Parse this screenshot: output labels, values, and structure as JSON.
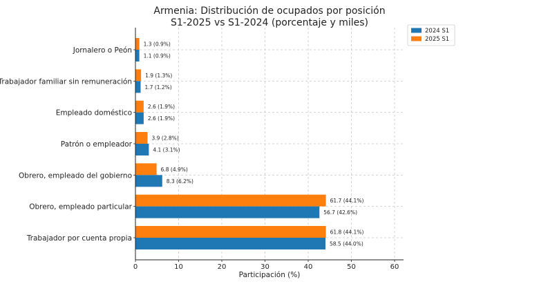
{
  "chart_data": {
    "type": "bar",
    "orientation": "horizontal",
    "title_line1": "Armenia: Distribución de ocupados por posición",
    "title_line2": "S1-2025 vs S1-2024 (porcentaje y miles)",
    "xlabel": "Participación (%)",
    "ylabel": "",
    "xlim": [
      0,
      62
    ],
    "xticks": [
      0,
      10,
      20,
      30,
      40,
      50,
      60
    ],
    "grid": "x-dashed",
    "legend_position": "top-right",
    "categories": [
      "Jornalero o Peón",
      "Trabajador familiar sin remuneración",
      "Empleado doméstico",
      "Patrón o empleador",
      "Obrero, empleado del gobierno",
      "Obrero, empleado particular",
      "Trabajador por cuenta propia"
    ],
    "series": [
      {
        "name": "2024 S1",
        "color": "#1f77b4",
        "values": [
          0.9,
          1.2,
          1.9,
          3.1,
          6.2,
          42.6,
          44.0
        ],
        "labels": [
          "1.1 (0.9%)",
          "1.7 (1.2%)",
          "2.6 (1.9%)",
          "4.1 (3.1%)",
          "8.3 (6.2%)",
          "56.7 (42.6%)",
          "58.5 (44.0%)"
        ]
      },
      {
        "name": "2025 S1",
        "color": "#ff7f0e",
        "values": [
          0.9,
          1.3,
          1.9,
          2.8,
          4.9,
          44.1,
          44.1
        ],
        "labels": [
          "1.3 (0.9%)",
          "1.9 (1.3%)",
          "2.6 (1.9%)",
          "3.9 (2.8%)",
          "6.8 (4.9%)",
          "61.7 (44.1%)",
          "61.8 (44.1%)"
        ]
      }
    ]
  }
}
